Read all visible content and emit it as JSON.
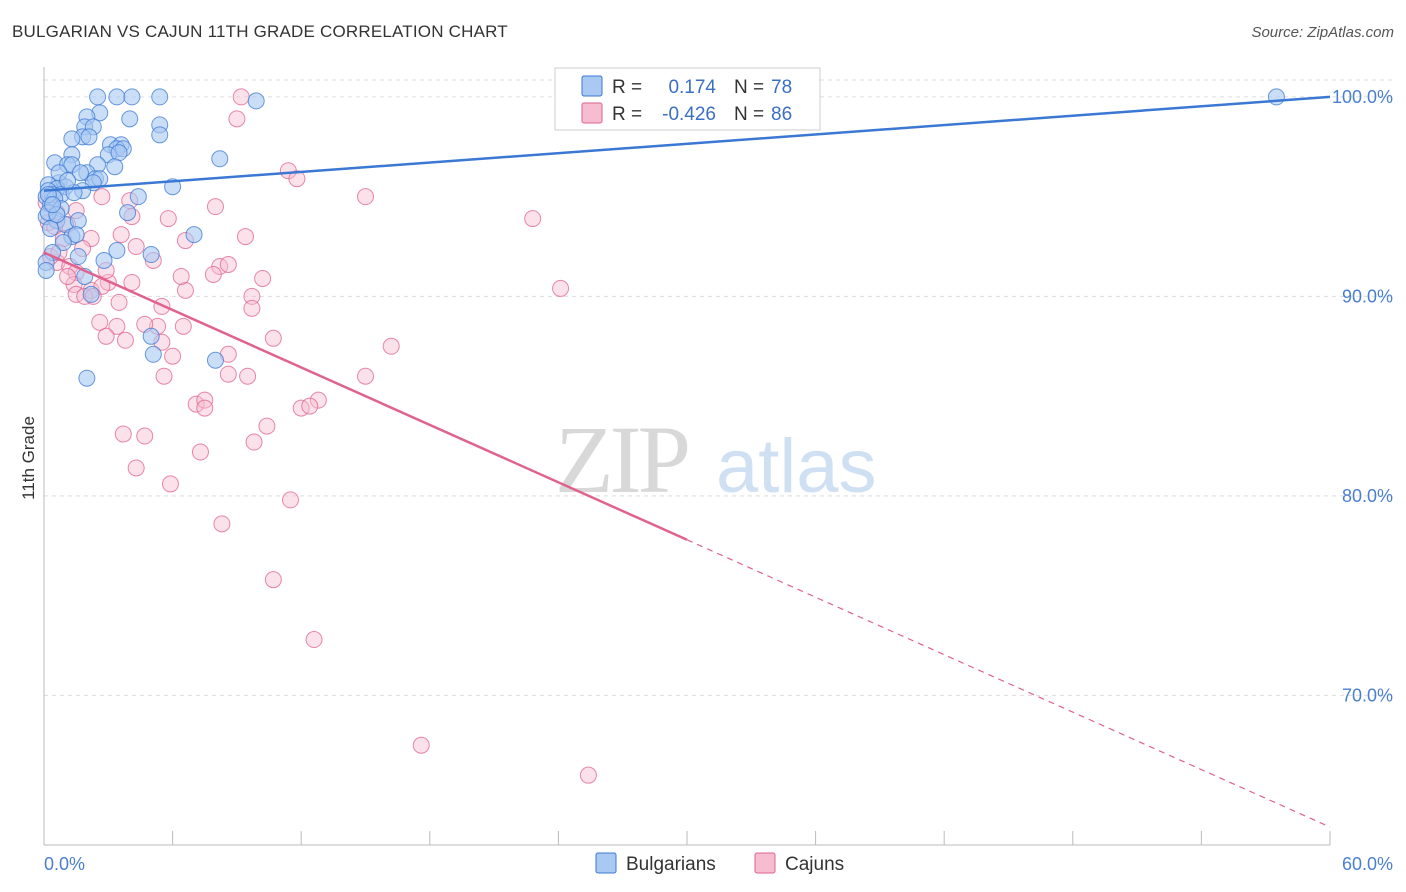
{
  "header": {
    "title": "BULGARIAN VS CAJUN 11TH GRADE CORRELATION CHART",
    "source": "Source: ZipAtlas.com"
  },
  "watermark": {
    "zip": "ZIP",
    "atlas": "atlas"
  },
  "colors": {
    "bulgarians": "#3a78d4",
    "bulgarians_fill": "#a9c8f2",
    "cajuns": "#e0628e",
    "cajuns_fill": "#f6bcd0",
    "tick_label": "#4a7fd0",
    "grid": "#dddddd"
  },
  "chart_data": {
    "type": "scatter",
    "title": "BULGARIAN VS CAJUN 11TH GRADE CORRELATION CHART",
    "ylabel": "11th Grade",
    "xlabel": "",
    "xlim": [
      0,
      60
    ],
    "ylim": [
      62.5,
      101.5
    ],
    "x_tick_labels": [
      {
        "value": 0,
        "label": "0.0%"
      },
      {
        "value": 60,
        "label": "60.0%"
      }
    ],
    "y_tick_labels": [
      {
        "value": 70,
        "label": "70.0%"
      },
      {
        "value": 80,
        "label": "80.0%"
      },
      {
        "value": 90,
        "label": "90.0%"
      },
      {
        "value": 100,
        "label": "100.0%"
      }
    ],
    "grid": "horizontal dashed",
    "legend_position": "top-center",
    "series": [
      {
        "name": "Bulgarians",
        "stat_r_label": "R =",
        "stat_r": "0.174",
        "stat_n_label": "N =",
        "stat_n": "78",
        "trend": {
          "x": [
            0,
            60
          ],
          "y": [
            95.3,
            100.0
          ],
          "dashed_from": null
        },
        "points": [
          [
            2.5,
            100
          ],
          [
            3.4,
            100
          ],
          [
            4.1,
            100
          ],
          [
            5.4,
            100
          ],
          [
            9.9,
            99.8
          ],
          [
            2.6,
            99.2
          ],
          [
            2.0,
            99.0
          ],
          [
            4.0,
            98.9
          ],
          [
            1.9,
            98.5
          ],
          [
            2.3,
            98.5
          ],
          [
            5.4,
            98.6
          ],
          [
            5.4,
            98.1
          ],
          [
            1.8,
            98.0
          ],
          [
            1.3,
            97.9
          ],
          [
            3.1,
            97.6
          ],
          [
            3.6,
            97.6
          ],
          [
            3.4,
            97.4
          ],
          [
            3.7,
            97.4
          ],
          [
            1.3,
            97.1
          ],
          [
            3.0,
            97.1
          ],
          [
            3.5,
            97.2
          ],
          [
            8.2,
            96.9
          ],
          [
            0.5,
            96.7
          ],
          [
            1.1,
            96.6
          ],
          [
            1.3,
            96.6
          ],
          [
            2.5,
            96.6
          ],
          [
            3.3,
            96.5
          ],
          [
            2.0,
            96.2
          ],
          [
            1.7,
            96.2
          ],
          [
            2.4,
            95.9
          ],
          [
            2.6,
            95.9
          ],
          [
            2.3,
            95.7
          ],
          [
            0.7,
            95.7
          ],
          [
            0.2,
            95.6
          ],
          [
            1.0,
            95.5
          ],
          [
            0.6,
            95.4
          ],
          [
            0.2,
            95.3
          ],
          [
            0.4,
            95.1
          ],
          [
            6.0,
            95.5
          ],
          [
            1.8,
            95.3
          ],
          [
            0.8,
            95.1
          ],
          [
            1.4,
            95.2
          ],
          [
            0.1,
            95.0
          ],
          [
            0.5,
            94.9
          ],
          [
            4.4,
            95.0
          ],
          [
            0.3,
            94.6
          ],
          [
            0.8,
            94.4
          ],
          [
            3.9,
            94.2
          ],
          [
            0.1,
            94.0
          ],
          [
            0.6,
            93.8
          ],
          [
            1.0,
            93.6
          ],
          [
            1.6,
            93.8
          ],
          [
            0.3,
            93.4
          ],
          [
            7.0,
            93.1
          ],
          [
            1.3,
            93.0
          ],
          [
            1.5,
            93.1
          ],
          [
            0.9,
            92.7
          ],
          [
            3.4,
            92.3
          ],
          [
            5.0,
            92.1
          ],
          [
            0.4,
            92.2
          ],
          [
            1.6,
            92.0
          ],
          [
            2.8,
            91.8
          ],
          [
            0.1,
            91.7
          ],
          [
            1.9,
            91.0
          ],
          [
            0.1,
            91.3
          ],
          [
            2.2,
            90.1
          ],
          [
            5.0,
            88.0
          ],
          [
            5.1,
            87.1
          ],
          [
            8.0,
            86.8
          ],
          [
            2.0,
            85.9
          ],
          [
            0.2,
            94.2
          ],
          [
            0.6,
            94.1
          ],
          [
            0.7,
            96.2
          ],
          [
            1.1,
            95.8
          ],
          [
            57.5,
            100.0
          ],
          [
            0.2,
            95.1
          ],
          [
            0.4,
            94.6
          ],
          [
            2.1,
            98.0
          ]
        ]
      },
      {
        "name": "Cajuns",
        "stat_r_label": "R =",
        "stat_r": "-0.426",
        "stat_n_label": "N =",
        "stat_n": "86",
        "trend": {
          "x": [
            0,
            60
          ],
          "y": [
            92.2,
            63.4
          ],
          "dashed_from": 30
        },
        "points": [
          [
            9.2,
            100
          ],
          [
            9.0,
            98.9
          ],
          [
            11.4,
            96.3
          ],
          [
            11.8,
            95.9
          ],
          [
            15.0,
            95.0
          ],
          [
            2.7,
            95.0
          ],
          [
            4.0,
            94.8
          ],
          [
            0.1,
            94.7
          ],
          [
            8.0,
            94.5
          ],
          [
            1.5,
            94.3
          ],
          [
            0.6,
            94.2
          ],
          [
            4.1,
            94.0
          ],
          [
            5.8,
            93.9
          ],
          [
            22.8,
            93.9
          ],
          [
            0.2,
            93.7
          ],
          [
            1.1,
            93.6
          ],
          [
            0.5,
            93.5
          ],
          [
            3.6,
            93.1
          ],
          [
            9.4,
            93.0
          ],
          [
            0.9,
            92.9
          ],
          [
            2.2,
            92.9
          ],
          [
            6.6,
            92.8
          ],
          [
            4.3,
            92.5
          ],
          [
            1.8,
            92.4
          ],
          [
            5.1,
            91.8
          ],
          [
            0.6,
            91.7
          ],
          [
            1.2,
            91.5
          ],
          [
            8.2,
            91.5
          ],
          [
            8.6,
            91.6
          ],
          [
            1.5,
            91.2
          ],
          [
            10.2,
            90.9
          ],
          [
            7.9,
            91.1
          ],
          [
            1.4,
            90.6
          ],
          [
            3.0,
            90.7
          ],
          [
            4.1,
            90.7
          ],
          [
            2.2,
            90.3
          ],
          [
            2.7,
            90.5
          ],
          [
            6.6,
            90.3
          ],
          [
            24.1,
            90.4
          ],
          [
            1.5,
            90.1
          ],
          [
            9.7,
            90.0
          ],
          [
            1.9,
            90.0
          ],
          [
            2.3,
            90.0
          ],
          [
            3.5,
            89.7
          ],
          [
            9.7,
            89.4
          ],
          [
            5.5,
            89.5
          ],
          [
            2.6,
            88.7
          ],
          [
            3.4,
            88.5
          ],
          [
            5.3,
            88.5
          ],
          [
            4.7,
            88.6
          ],
          [
            6.5,
            88.5
          ],
          [
            2.9,
            88.0
          ],
          [
            3.8,
            87.8
          ],
          [
            10.7,
            87.9
          ],
          [
            5.5,
            87.7
          ],
          [
            16.2,
            87.5
          ],
          [
            6.0,
            87.0
          ],
          [
            8.6,
            87.1
          ],
          [
            5.6,
            86.0
          ],
          [
            8.6,
            86.1
          ],
          [
            9.5,
            86.0
          ],
          [
            15.0,
            86.0
          ],
          [
            12.8,
            84.8
          ],
          [
            7.1,
            84.6
          ],
          [
            7.5,
            84.8
          ],
          [
            12.0,
            84.4
          ],
          [
            12.4,
            84.5
          ],
          [
            7.5,
            84.4
          ],
          [
            10.4,
            83.5
          ],
          [
            3.7,
            83.1
          ],
          [
            4.7,
            83.0
          ],
          [
            9.8,
            82.7
          ],
          [
            7.3,
            82.2
          ],
          [
            4.3,
            81.4
          ],
          [
            5.9,
            80.6
          ],
          [
            11.5,
            79.8
          ],
          [
            8.3,
            78.6
          ],
          [
            10.7,
            75.8
          ],
          [
            12.6,
            72.8
          ],
          [
            17.6,
            67.5
          ],
          [
            25.4,
            66.0
          ],
          [
            1.1,
            91.0
          ],
          [
            0.3,
            92.0
          ],
          [
            2.9,
            91.3
          ],
          [
            6.4,
            91.0
          ],
          [
            0.7,
            92.2
          ]
        ]
      }
    ]
  }
}
